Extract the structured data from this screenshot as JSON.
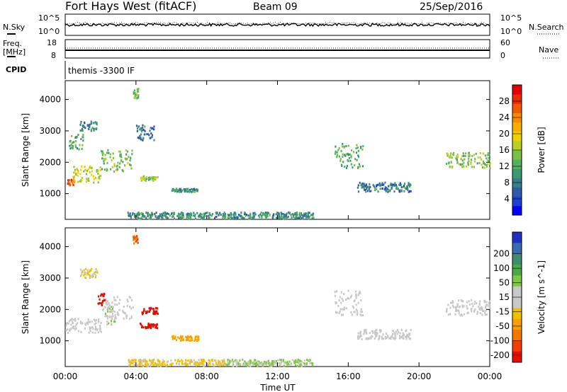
{
  "header": {
    "station": "Fort Hays West (fitACF)",
    "beam": "Beam 09",
    "date": "25/Sep/2016"
  },
  "top_panels": {
    "nsky": {
      "label": "N.Sky",
      "ticks": [
        "10^5",
        "10^0"
      ]
    },
    "nsearch": {
      "label": "N.Search",
      "ticks": [
        "10^5",
        "10^0"
      ]
    },
    "freq": {
      "label_line1": "Freq.",
      "label_line2": "[MHz]",
      "ticks": [
        "18",
        "8"
      ]
    },
    "nave": {
      "label": "Nave",
      "ticks": [
        "60",
        "0"
      ]
    },
    "cpid": {
      "label": "CPID",
      "text": "themis -3300 IF"
    }
  },
  "chart_data": [
    {
      "type": "heatmap",
      "name": "power",
      "ylabel": "Slant Range [km]",
      "xlabel": "",
      "y_ticks": [
        1000,
        2000,
        3000,
        4000
      ],
      "ylim": [
        180,
        4600
      ],
      "x_ticks": [
        "00:00",
        "04:00",
        "08:00",
        "12:00",
        "16:00",
        "20:00",
        "00:00"
      ],
      "colorbar": {
        "label": "Power [dB]",
        "ticks": [
          "4",
          "8",
          "12",
          "16",
          "20",
          "24",
          "28"
        ],
        "colors": [
          "#0000ff",
          "#1e3fd0",
          "#2f5aa8",
          "#3a7d8a",
          "#3b9a70",
          "#52b060",
          "#7ac043",
          "#b8d022",
          "#f0d000",
          "#f8b000",
          "#f88a00",
          "#f05a00",
          "#e82c00",
          "#e00000"
        ]
      },
      "echo_regions": [
        {
          "t": [
            0.0,
            0.5
          ],
          "r": [
            1250,
            1450
          ],
          "power": 26
        },
        {
          "t": [
            0.4,
            2.0
          ],
          "r": [
            1350,
            1900
          ],
          "power": 18
        },
        {
          "t": [
            2.0,
            3.8
          ],
          "r": [
            1700,
            2400
          ],
          "power": 14
        },
        {
          "t": [
            0.2,
            1.0
          ],
          "r": [
            2400,
            2900
          ],
          "power": 12
        },
        {
          "t": [
            0.8,
            1.8
          ],
          "r": [
            3000,
            3300
          ],
          "power": 9
        },
        {
          "t": [
            3.8,
            4.1
          ],
          "r": [
            4000,
            4350
          ],
          "power": 14
        },
        {
          "t": [
            4.2,
            5.2
          ],
          "r": [
            1400,
            1550
          ],
          "power": 15
        },
        {
          "t": [
            4.0,
            5.0
          ],
          "r": [
            2700,
            3200
          ],
          "power": 8
        },
        {
          "t": [
            6.0,
            7.5
          ],
          "r": [
            1050,
            1150
          ],
          "power": 10
        },
        {
          "t": [
            15.2,
            16.8
          ],
          "r": [
            1800,
            2600
          ],
          "power": 12
        },
        {
          "t": [
            16.5,
            19.5
          ],
          "r": [
            1050,
            1350
          ],
          "power": 8
        },
        {
          "t": [
            21.5,
            24.0
          ],
          "r": [
            1800,
            2300
          ],
          "power": 14
        },
        {
          "t": [
            3.5,
            14.0
          ],
          "r": [
            200,
            400
          ],
          "power": 10
        }
      ]
    },
    {
      "type": "heatmap",
      "name": "velocity",
      "ylabel": "Slant Range [km]",
      "xlabel": "Time UT",
      "y_ticks": [
        1000,
        2000,
        3000,
        4000
      ],
      "ylim": [
        180,
        4600
      ],
      "x_ticks": [
        "00:00",
        "04:00",
        "08:00",
        "12:00",
        "16:00",
        "20:00",
        "00:00"
      ],
      "colorbar": {
        "label": "Velocity [m s^-1]",
        "ticks": [
          "200",
          "100",
          "50",
          "15",
          "-15",
          "-50",
          "-100",
          "-200"
        ],
        "colors": [
          "#2030c0",
          "#3a6ab0",
          "#3f8c70",
          "#4aa84a",
          "#80c840",
          "#c8c8c8",
          "#c8c8c8",
          "#f0c000",
          "#f8a000",
          "#f07800",
          "#f04000",
          "#e01000"
        ]
      },
      "echo_regions": [
        {
          "t": [
            0.0,
            2.0
          ],
          "r": [
            1250,
            1700
          ],
          "velocity": 0
        },
        {
          "t": [
            2.0,
            3.8
          ],
          "r": [
            1700,
            2400
          ],
          "velocity": 0
        },
        {
          "t": [
            2.2,
            2.8
          ],
          "r": [
            1500,
            2100
          ],
          "velocity": 40
        },
        {
          "t": [
            0.8,
            1.8
          ],
          "r": [
            3000,
            3300
          ],
          "velocity": -40
        },
        {
          "t": [
            1.8,
            2.2
          ],
          "r": [
            2100,
            2500
          ],
          "velocity": -200
        },
        {
          "t": [
            3.8,
            4.1
          ],
          "r": [
            4100,
            4350
          ],
          "velocity": -150
        },
        {
          "t": [
            4.3,
            5.2
          ],
          "r": [
            1850,
            2050
          ],
          "velocity": -200
        },
        {
          "t": [
            4.2,
            5.2
          ],
          "r": [
            1400,
            1550
          ],
          "velocity": -200
        },
        {
          "t": [
            6.0,
            7.5
          ],
          "r": [
            1000,
            1150
          ],
          "velocity": -80
        },
        {
          "t": [
            15.2,
            16.8
          ],
          "r": [
            1800,
            2600
          ],
          "velocity": 0
        },
        {
          "t": [
            16.5,
            19.5
          ],
          "r": [
            1050,
            1350
          ],
          "velocity": 0
        },
        {
          "t": [
            21.5,
            24.0
          ],
          "r": [
            1800,
            2300
          ],
          "velocity": 0
        },
        {
          "t": [
            3.5,
            9.0
          ],
          "r": [
            200,
            400
          ],
          "velocity": -40
        },
        {
          "t": [
            9.0,
            14.0
          ],
          "r": [
            200,
            400
          ],
          "velocity": 40
        }
      ]
    }
  ]
}
